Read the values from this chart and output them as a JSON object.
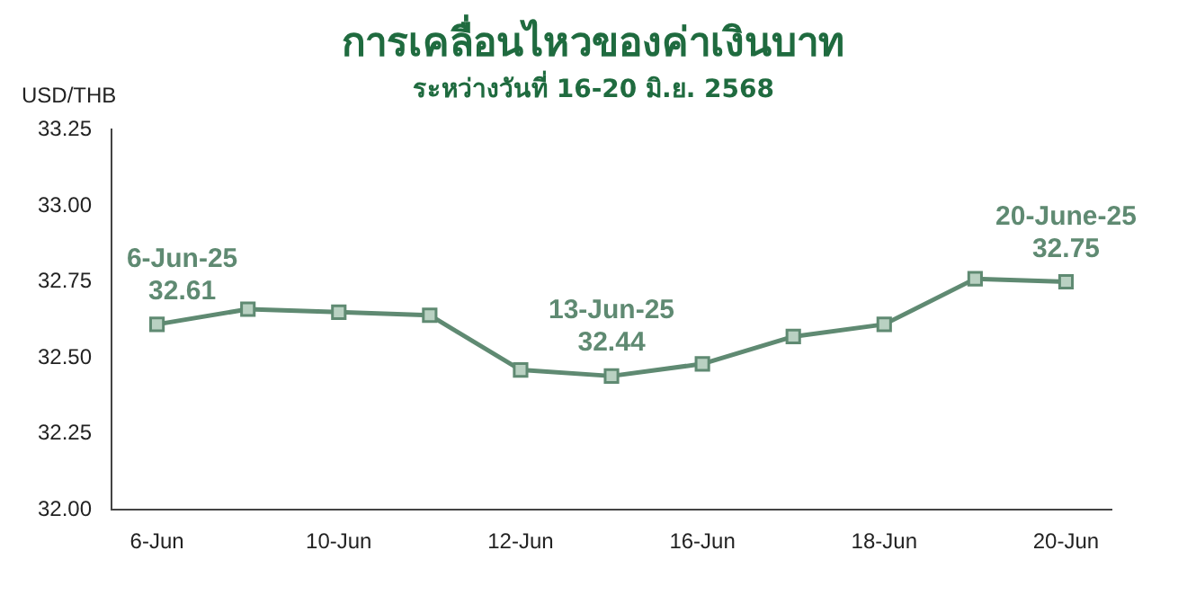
{
  "chart_data": {
    "type": "line",
    "title": "การเคลื่อนไหวของค่าเงินบาท",
    "subtitle": "ระหว่างวันที่ 16-20 มิ.ย. 2568",
    "ylabel": "USD/THB",
    "categories": [
      "6-Jun",
      null,
      "10-Jun",
      null,
      "12-Jun",
      null,
      "16-Jun",
      null,
      "18-Jun",
      null,
      "20-Jun"
    ],
    "series": [
      {
        "color": "#5f8a72",
        "values": [
          32.61,
          32.66,
          32.65,
          32.64,
          32.46,
          32.44,
          32.48,
          32.57,
          32.61,
          32.76,
          32.75
        ]
      }
    ],
    "ylim": [
      32.0,
      33.25
    ],
    "yticks": [
      {
        "value": 32,
        "label": "32.00"
      },
      {
        "value": 32.25,
        "label": "32.25"
      },
      {
        "value": 32.5,
        "label": "32.50"
      },
      {
        "value": 32.75,
        "label": "32.75"
      },
      {
        "value": 33,
        "label": "33.00"
      },
      {
        "value": 33.25,
        "label": "33.25"
      }
    ],
    "annotations": [
      {
        "text": "6-Jun-25\n32.61",
        "x": "6-Jun",
        "y": 32.61
      },
      {
        "text": "13-Jun-25\n32.44",
        "y": 32.44
      },
      {
        "text": "20-June-25\n32.75",
        "x": "20-Jun",
        "y": 32.75
      }
    ],
    "marker": "square",
    "grid": false,
    "legend": false
  }
}
